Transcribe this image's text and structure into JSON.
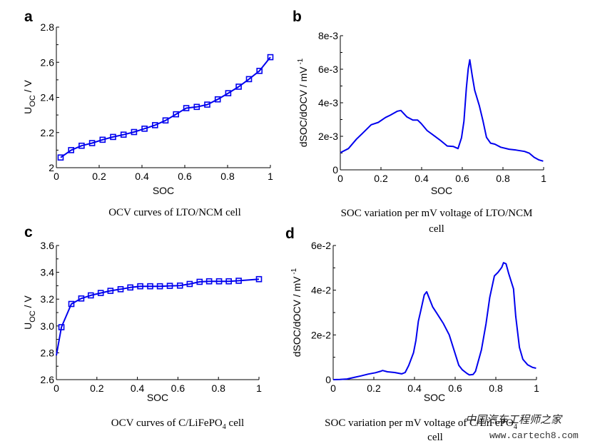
{
  "figure": {
    "colors": {
      "series": "#0000EE",
      "axis": "#000000",
      "background": "#FFFFFF"
    },
    "watermark": {
      "text_cn": "中国汽车工程师之家",
      "text_url": "www.cartech8.com"
    }
  },
  "chart_data": [
    {
      "id": "a",
      "panel_label": "a",
      "type": "line",
      "title": "",
      "caption": [
        "OCV  curves  of  LTO/NCM  cell"
      ],
      "xlabel": "SOC",
      "ylabel": "U",
      "ylabel_sub": "OC",
      "ylabel_suffix": " / V",
      "xlim": [
        0,
        1
      ],
      "ylim": [
        2.0,
        2.8
      ],
      "xticks": [
        0,
        0.2,
        0.4,
        0.6,
        0.8,
        1
      ],
      "xtick_labels": [
        "0",
        "0.2",
        "0.4",
        "0.6",
        "0.8",
        "1"
      ],
      "yticks": [
        2.0,
        2.2,
        2.4,
        2.6,
        2.8
      ],
      "ytick_labels": [
        "2",
        "2.2",
        "2.4",
        "2.6",
        "2.8"
      ],
      "yminor": [
        2.1,
        2.3,
        2.5,
        2.7
      ],
      "xminor": [],
      "grid": false,
      "markers": "square",
      "series": [
        {
          "name": "OCV LTO/NCM",
          "x": [
            0.02,
            0.069,
            0.118,
            0.167,
            0.216,
            0.265,
            0.314,
            0.363,
            0.412,
            0.461,
            0.51,
            0.559,
            0.607,
            0.656,
            0.705,
            0.754,
            0.803,
            0.852,
            0.9,
            0.949,
            1.0
          ],
          "y": [
            2.058,
            2.1,
            2.125,
            2.14,
            2.159,
            2.175,
            2.188,
            2.203,
            2.222,
            2.242,
            2.269,
            2.304,
            2.339,
            2.346,
            2.359,
            2.389,
            2.424,
            2.461,
            2.504,
            2.551,
            2.629
          ],
          "marker_start_index": 0
        }
      ]
    },
    {
      "id": "b",
      "panel_label": "b",
      "type": "line",
      "title": "",
      "caption": [
        "SOC variation per mV voltage of LTO/NCM",
        "cell"
      ],
      "xlabel": "SOC",
      "ylabel": "dSOC/dOCV  /  mV",
      "ylabel_sup": "-1",
      "xlim": [
        0,
        1
      ],
      "ylim": [
        0,
        0.008
      ],
      "xticks": [
        0,
        0.2,
        0.4,
        0.6,
        0.8,
        1
      ],
      "xtick_labels": [
        "0",
        "0.2",
        "0.4",
        "0.6",
        "0.8",
        "1"
      ],
      "yticks": [
        0,
        0.002,
        0.004,
        0.006,
        0.008
      ],
      "ytick_labels": [
        "0",
        "2e-3",
        "4e-3",
        "6e-3",
        "8e-3"
      ],
      "yminor": [
        0.001,
        0.003,
        0.005,
        0.007
      ],
      "xminor": [],
      "grid": false,
      "markers": "none",
      "series": [
        {
          "name": "dSOC/dOCV LTO/NCM",
          "x": [
            0,
            0.04,
            0.08,
            0.117,
            0.152,
            0.187,
            0.222,
            0.246,
            0.281,
            0.298,
            0.327,
            0.357,
            0.38,
            0.398,
            0.427,
            0.456,
            0.491,
            0.526,
            0.556,
            0.579,
            0.596,
            0.608,
            0.62,
            0.629,
            0.637,
            0.649,
            0.661,
            0.684,
            0.702,
            0.719,
            0.739,
            0.76,
            0.789,
            0.83,
            0.865,
            0.906,
            0.93,
            0.953,
            0.977,
            0.998
          ],
          "y": [
            0.00102,
            0.00127,
            0.00184,
            0.00227,
            0.00269,
            0.00283,
            0.00312,
            0.00326,
            0.0035,
            0.00354,
            0.00316,
            0.00297,
            0.00297,
            0.00276,
            0.00234,
            0.00208,
            0.00177,
            0.00142,
            0.00139,
            0.00127,
            0.00191,
            0.0029,
            0.00488,
            0.00602,
            0.00656,
            0.00559,
            0.00474,
            0.00382,
            0.0029,
            0.00194,
            0.00159,
            0.00153,
            0.00135,
            0.00123,
            0.00118,
            0.0011,
            0.00099,
            0.00075,
            0.00059,
            0.00052
          ]
        }
      ]
    },
    {
      "id": "c",
      "panel_label": "c",
      "type": "line",
      "title": "",
      "caption": [
        "OCV  curves  of  C/LiFePO",
        "4",
        "  cell"
      ],
      "xlabel": "SOC",
      "ylabel": "U",
      "ylabel_sub": "OC",
      "ylabel_suffix": " / V",
      "xlim": [
        0,
        1
      ],
      "ylim": [
        2.6,
        3.6
      ],
      "xticks": [
        0,
        0.2,
        0.4,
        0.6,
        0.8,
        1
      ],
      "xtick_labels": [
        "0",
        "0.2",
        "0.4",
        "0.6",
        "0.8",
        "1"
      ],
      "yticks": [
        2.6,
        2.8,
        3.0,
        3.2,
        3.4,
        3.6
      ],
      "ytick_labels": [
        "2.6",
        "2.8",
        "3.0",
        "3.2",
        "3.4",
        "3.6"
      ],
      "yminor": [
        2.7,
        2.9,
        3.1,
        3.3,
        3.5
      ],
      "xminor": [],
      "grid": false,
      "markers": "square",
      "series": [
        {
          "name": "OCV C/LiFePO4",
          "x": [
            0,
            0.025,
            0.074,
            0.123,
            0.17,
            0.219,
            0.267,
            0.317,
            0.365,
            0.414,
            0.463,
            0.511,
            0.56,
            0.61,
            0.658,
            0.707,
            0.754,
            0.803,
            0.851,
            0.9,
            1.0
          ],
          "y": [
            2.781,
            2.991,
            3.164,
            3.205,
            3.228,
            3.246,
            3.262,
            3.274,
            3.287,
            3.296,
            3.296,
            3.296,
            3.299,
            3.301,
            3.313,
            3.329,
            3.333,
            3.333,
            3.333,
            3.337,
            3.349
          ],
          "marker_start_index": 1
        }
      ]
    },
    {
      "id": "d",
      "panel_label": "d",
      "type": "line",
      "title": "",
      "caption": [
        "SOC variation per mV voltage of C/LiFePO",
        "4",
        "cell"
      ],
      "xlabel": "SOC",
      "ylabel": "dSOC/dOCV  /  mV",
      "ylabel_sup": "-1",
      "xlim": [
        0,
        1
      ],
      "ylim": [
        0,
        0.06
      ],
      "xticks": [
        0,
        0.2,
        0.4,
        0.6,
        0.8,
        1
      ],
      "xtick_labels": [
        "0",
        "0.2",
        "0.4",
        "0.6",
        "0.8",
        "1"
      ],
      "yticks": [
        0,
        0.02,
        0.04,
        0.06
      ],
      "ytick_labels": [
        "0",
        "2e-2",
        "4e-2",
        "6e-2"
      ],
      "yminor": [
        0.01,
        0.03,
        0.05
      ],
      "xminor": [],
      "grid": false,
      "markers": "none",
      "series": [
        {
          "name": "dSOC/dOCV C/LiFePO4",
          "x": [
            0,
            0.033,
            0.068,
            0.103,
            0.138,
            0.173,
            0.208,
            0.232,
            0.243,
            0.267,
            0.302,
            0.337,
            0.354,
            0.372,
            0.395,
            0.407,
            0.419,
            0.43,
            0.448,
            0.46,
            0.471,
            0.489,
            0.512,
            0.542,
            0.571,
            0.594,
            0.618,
            0.635,
            0.659,
            0.67,
            0.688,
            0.7,
            0.729,
            0.752,
            0.77,
            0.793,
            0.811,
            0.829,
            0.838,
            0.85,
            0.863,
            0.887,
            0.898,
            0.916,
            0.933,
            0.957,
            0.98,
            0.998
          ],
          "y": [
            0.0,
            0.0001,
            0.0003,
            0.001,
            0.0017,
            0.0025,
            0.0031,
            0.0037,
            0.0041,
            0.0035,
            0.0032,
            0.0026,
            0.0032,
            0.0064,
            0.012,
            0.0176,
            0.0261,
            0.0304,
            0.0379,
            0.0393,
            0.0368,
            0.0326,
            0.0294,
            0.0251,
            0.02,
            0.0133,
            0.0064,
            0.0044,
            0.0027,
            0.0021,
            0.0023,
            0.0037,
            0.0133,
            0.0251,
            0.0368,
            0.0464,
            0.048,
            0.0502,
            0.0523,
            0.0518,
            0.0475,
            0.0406,
            0.0283,
            0.0144,
            0.0091,
            0.0066,
            0.0055,
            0.0051
          ]
        }
      ]
    }
  ]
}
